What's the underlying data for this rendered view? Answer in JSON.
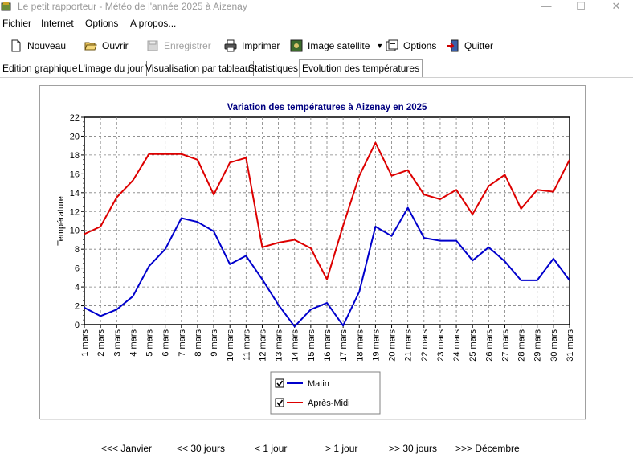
{
  "window": {
    "title": "Le petit rapporteur - Météo de l'année 2025 à Aizenay",
    "minimize_icon": "minimize-icon",
    "maximize_icon": "maximize-icon",
    "close_icon": "close-icon"
  },
  "menu": [
    "Fichier",
    "Internet",
    "Options",
    "A propos..."
  ],
  "toolbar": {
    "new_label": "Nouveau",
    "open_label": "Ouvrir",
    "save_label": "Enregistrer",
    "print_label": "Imprimer",
    "satellite_label": "Image satellite",
    "options_label": "Options",
    "quit_label": "Quitter",
    "save_disabled": true
  },
  "tabs": [
    "Edition graphique",
    "L'image du jour",
    "Visualisation par tableau",
    "Statistiques",
    "Evolution des températures"
  ],
  "active_tab": "Evolution des températures",
  "chart_data": {
    "type": "line",
    "title": "Variation des températures à Aizenay en 2025",
    "xlabel": "",
    "ylabel": "Température",
    "ylim": [
      0,
      22
    ],
    "yticks": [
      0,
      2,
      4,
      6,
      8,
      10,
      12,
      14,
      16,
      18,
      20,
      22
    ],
    "grid": true,
    "categories": [
      "1 mars",
      "2 mars",
      "3 mars",
      "4 mars",
      "5 mars",
      "6 mars",
      "7 mars",
      "8 mars",
      "9 mars",
      "10 mars",
      "11 mars",
      "12 mars",
      "13 mars",
      "14 mars",
      "15 mars",
      "16 mars",
      "17 mars",
      "18 mars",
      "19 mars",
      "20 mars",
      "21 mars",
      "22 mars",
      "23 mars",
      "24 mars",
      "25 mars",
      "26 mars",
      "27 mars",
      "28 mars",
      "29 mars",
      "30 mars",
      "31 mars"
    ],
    "series": [
      {
        "name": "Matin",
        "color": "#0000cc",
        "checked": true,
        "values": [
          1.8,
          0.9,
          1.6,
          3.0,
          6.2,
          8.0,
          11.3,
          10.9,
          9.9,
          6.4,
          7.3,
          4.8,
          2.1,
          -0.2,
          1.6,
          2.3,
          -0.1,
          3.5,
          10.4,
          9.4,
          12.4,
          9.2,
          8.9,
          8.9,
          6.8,
          8.2,
          6.7,
          4.7,
          4.7,
          7.0,
          4.7
        ]
      },
      {
        "name": "Après-Midi",
        "color": "#dd0000",
        "checked": true,
        "values": [
          9.6,
          10.4,
          13.5,
          15.3,
          18.1,
          18.1,
          18.1,
          17.5,
          13.8,
          17.2,
          17.7,
          8.2,
          8.7,
          9.0,
          8.1,
          4.8,
          10.5,
          15.8,
          19.3,
          15.8,
          16.4,
          13.8,
          13.3,
          14.3,
          11.7,
          14.7,
          15.9,
          12.3,
          14.3,
          14.1,
          17.5
        ]
      }
    ],
    "legend_position": "bottom-center"
  },
  "nav": {
    "prev_month": "<<< Janvier",
    "prev_30": "<< 30 jours",
    "prev_1": "< 1 jour",
    "next_1": "> 1 jour",
    "next_30": ">> 30 jours",
    "next_month": ">>> Décembre"
  }
}
